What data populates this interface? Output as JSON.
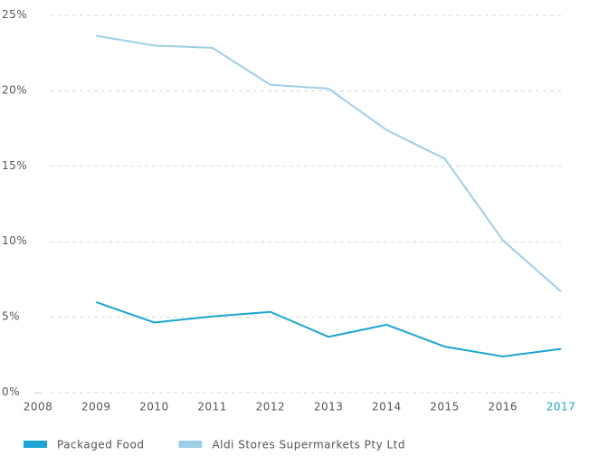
{
  "chart_data": {
    "type": "line",
    "x": [
      2009,
      2010,
      2011,
      2012,
      2013,
      2014,
      2015,
      2016,
      2017
    ],
    "series": [
      {
        "name": "Packaged Food",
        "color": "#1aa6d0",
        "values": [
          6.0,
          4.65,
          5.05,
          5.35,
          3.7,
          4.5,
          3.05,
          2.4,
          2.9
        ]
      },
      {
        "name": "Aldi Stores Supermarkets Pty Ltd",
        "color": "#9ecfe6",
        "values": [
          23.65,
          23.0,
          22.85,
          20.4,
          20.15,
          17.4,
          15.5,
          10.1,
          6.7
        ]
      }
    ],
    "xlim": [
      2008,
      2017
    ],
    "xticks": [
      2008,
      2009,
      2010,
      2011,
      2012,
      2013,
      2014,
      2015,
      2016,
      2017
    ],
    "ylim": [
      0,
      25
    ],
    "yticks": [
      {
        "value": 0,
        "label": "0%"
      },
      {
        "value": 5,
        "label": "5%"
      },
      {
        "value": 10,
        "label": "10%"
      },
      {
        "value": 15,
        "label": "15%"
      },
      {
        "value": 20,
        "label": "20%"
      },
      {
        "value": 25,
        "label": "25%"
      }
    ],
    "grid": true,
    "legend": "bottom-left"
  }
}
